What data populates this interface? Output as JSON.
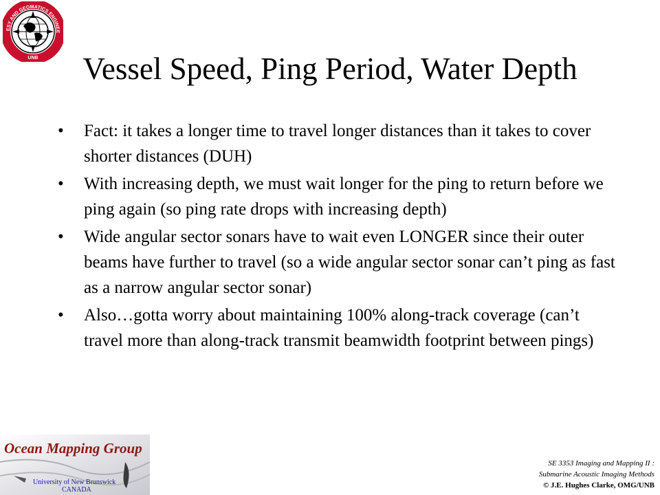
{
  "slide": {
    "title": "Vessel Speed, Ping Period, Water Depth",
    "bullet_symbol": "•",
    "bullets": [
      "Fact:  it takes a longer time to travel longer distances than it takes to cover shorter distances (DUH)",
      "With increasing depth, we must wait longer for the ping to return before we ping again (so ping rate drops with increasing depth)",
      "Wide angular sector sonars have to wait even LONGER since their outer beams have further to travel (so a wide angular sector sonar can’t ping as fast as a narrow angular sector sonar)",
      "Also…gotta worry about maintaining 100% along-track coverage (can’t travel more than along-track transmit beamwidth footprint between pings)"
    ]
  },
  "logos": {
    "geodesy_seal_text": "GEODESY AND GEOMATICS ENGINEERING",
    "geodesy_seal_sub": "UNB",
    "omg_title": "Ocean Mapping Group",
    "unb_line1": "University of New Brunswick",
    "unb_line2": "CANADA"
  },
  "footer": {
    "course": "SE 3353 Imaging and Mapping II :",
    "subtitle": "Submarine Acoustic Imaging Methods",
    "copyright": "© J.E. Hughes Clarke, OMG/UNB"
  },
  "colors": {
    "seal_red": "#c8102e",
    "omg_red": "#8b1a12",
    "unb_blue": "#1a1a8a"
  }
}
